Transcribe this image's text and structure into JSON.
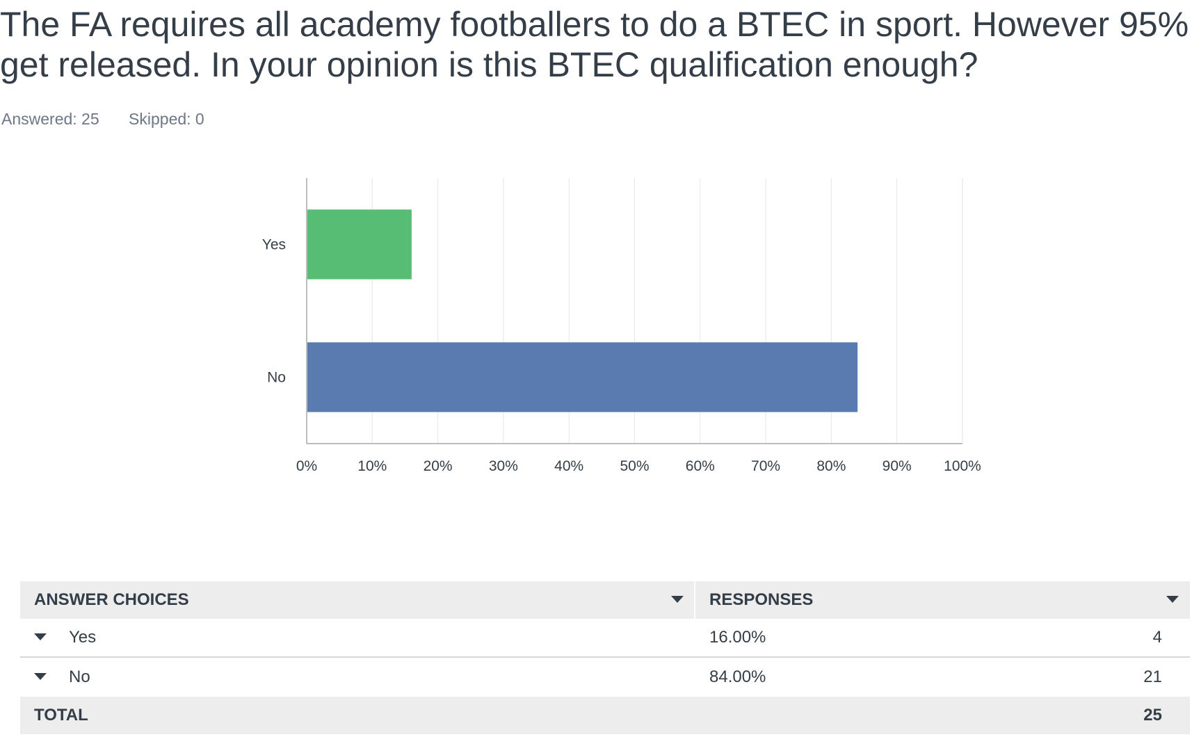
{
  "question": {
    "title": "The FA requires all academy footballers to do a BTEC in sport. However 95% get released. In your opinion is this BTEC qualification enough?",
    "answered": "Answered: 25",
    "skipped": "Skipped: 0"
  },
  "chart_data": {
    "type": "bar",
    "orientation": "horizontal",
    "categories": [
      "Yes",
      "No"
    ],
    "values": [
      16,
      84
    ],
    "colors": [
      "#58bd74",
      "#5a7bb0"
    ],
    "xlim": [
      0,
      100
    ],
    "xticks": [
      "0%",
      "10%",
      "20%",
      "30%",
      "40%",
      "50%",
      "60%",
      "70%",
      "80%",
      "90%",
      "100%"
    ],
    "grid": true
  },
  "table": {
    "header_choices": "ANSWER CHOICES",
    "header_responses": "RESPONSES",
    "rows": [
      {
        "choice": "Yes",
        "percent": "16.00%",
        "count": "4"
      },
      {
        "choice": "No",
        "percent": "84.00%",
        "count": "21"
      }
    ],
    "total_label": "TOTAL",
    "total_count": "25"
  }
}
